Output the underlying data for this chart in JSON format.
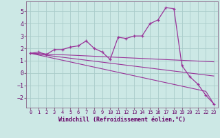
{
  "title": "",
  "xlabel": "Windchill (Refroidissement éolien,°C)",
  "ylabel": "",
  "bg_color": "#cce8e5",
  "grid_color": "#aaccca",
  "line_color": "#993399",
  "x_hours": [
    0,
    1,
    2,
    3,
    4,
    5,
    6,
    7,
    8,
    9,
    10,
    11,
    12,
    13,
    14,
    15,
    16,
    17,
    18,
    19,
    20,
    21,
    22,
    23
  ],
  "y_main": [
    1.6,
    1.7,
    1.5,
    1.9,
    1.9,
    2.1,
    2.2,
    2.6,
    2.0,
    1.7,
    1.1,
    2.9,
    2.8,
    3.0,
    3.0,
    4.0,
    4.3,
    5.3,
    5.2,
    0.6,
    -0.3,
    -0.9,
    -1.8,
    -2.5
  ],
  "y_trend1": [
    1.6,
    1.57,
    1.54,
    1.51,
    1.48,
    1.45,
    1.42,
    1.39,
    1.36,
    1.33,
    1.3,
    1.27,
    1.24,
    1.21,
    1.18,
    1.15,
    1.12,
    1.09,
    1.06,
    1.03,
    1.0,
    0.97,
    0.94,
    0.91
  ],
  "y_trend2": [
    1.6,
    1.52,
    1.44,
    1.36,
    1.28,
    1.2,
    1.12,
    1.04,
    0.96,
    0.88,
    0.8,
    0.72,
    0.64,
    0.56,
    0.48,
    0.4,
    0.32,
    0.24,
    0.16,
    0.08,
    0.0,
    -0.08,
    -0.16,
    -0.24
  ],
  "y_trend3": [
    1.6,
    1.46,
    1.32,
    1.18,
    1.04,
    0.9,
    0.76,
    0.62,
    0.48,
    0.34,
    0.2,
    0.06,
    -0.08,
    -0.22,
    -0.36,
    -0.5,
    -0.64,
    -0.78,
    -0.92,
    -1.06,
    -1.2,
    -1.34,
    -1.48,
    -2.5
  ],
  "ylim": [
    -2.8,
    5.8
  ],
  "yticks": [
    -2,
    -1,
    0,
    1,
    2,
    3,
    4,
    5
  ],
  "xticks": [
    0,
    1,
    2,
    3,
    4,
    5,
    6,
    7,
    8,
    9,
    10,
    11,
    12,
    13,
    14,
    15,
    16,
    17,
    18,
    19,
    20,
    21,
    22,
    23
  ]
}
